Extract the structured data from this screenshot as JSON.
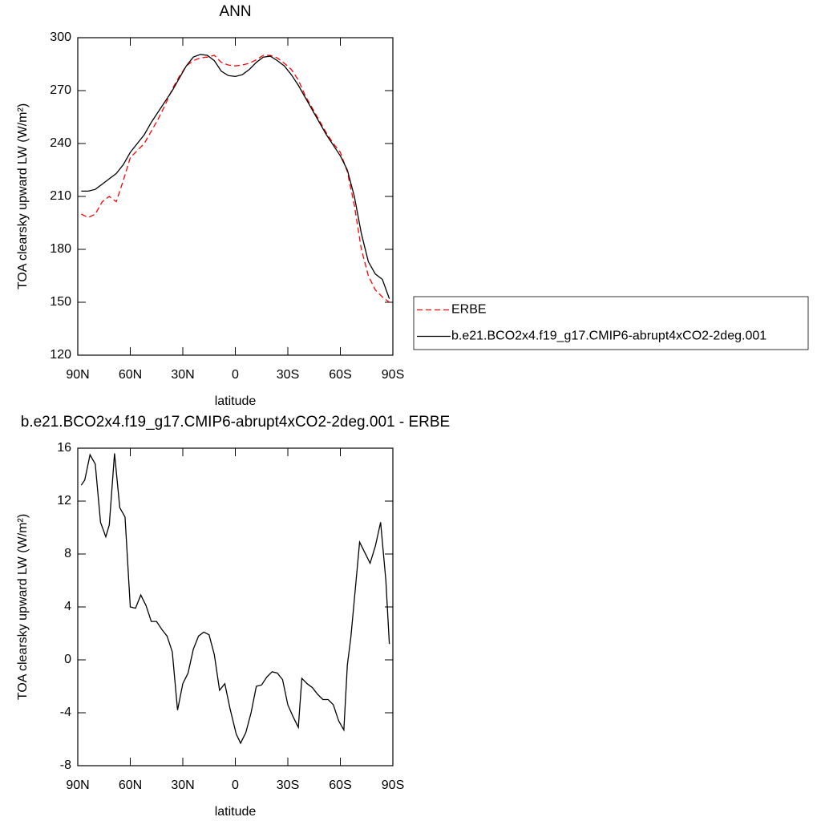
{
  "chart_data": [
    {
      "type": "line",
      "title": "ANN",
      "xlabel": "latitude",
      "ylabel": "TOA clearsky upward LW (W/m²)",
      "x": [
        88,
        84,
        80,
        76,
        72,
        68,
        64,
        60,
        56,
        52,
        48,
        44,
        40,
        36,
        32,
        28,
        24,
        20,
        16,
        12,
        8,
        4,
        0,
        -4,
        -8,
        -12,
        -16,
        -20,
        -24,
        -28,
        -32,
        -36,
        -40,
        -44,
        -48,
        -52,
        -56,
        -60,
        -64,
        -68,
        -72,
        -76,
        -80,
        -84,
        -88
      ],
      "series": [
        {
          "name": "ERBE",
          "color": "#ff0000",
          "line_style": "dashed",
          "values": [
            200,
            198,
            200,
            207,
            210,
            207,
            219,
            232,
            236,
            240,
            247,
            254,
            262,
            271,
            278,
            284,
            287,
            288.5,
            289,
            290,
            286,
            284.5,
            284,
            284.5,
            285.5,
            287.5,
            290,
            290,
            288.5,
            285.5,
            282,
            276,
            267,
            260,
            253,
            246,
            240,
            235,
            224,
            205,
            180,
            165,
            157,
            153,
            150
          ]
        },
        {
          "name": "b.e21.BCO2x4.f19_g17.CMIP6-abrupt4xCO2-2deg.001",
          "color": "#000000",
          "line_style": "solid",
          "values": [
            213,
            213,
            214,
            217,
            220,
            223,
            228,
            235,
            240,
            245,
            252,
            258,
            264,
            270,
            277,
            284,
            289,
            290.5,
            290,
            287,
            281,
            278.5,
            278,
            279,
            282,
            286,
            289,
            289.5,
            287,
            284,
            279,
            273,
            266,
            259,
            252,
            245,
            239,
            233,
            225,
            210,
            189,
            173,
            166,
            163,
            152
          ]
        }
      ],
      "xlim": [
        90,
        -90
      ],
      "xticks": [
        {
          "value": 90,
          "label": "90N"
        },
        {
          "value": 60,
          "label": "60N"
        },
        {
          "value": 30,
          "label": "30N"
        },
        0,
        {
          "value": -30,
          "label": "30S"
        },
        {
          "value": -60,
          "label": "60S"
        },
        {
          "value": -90,
          "label": "90S"
        }
      ],
      "ylim": [
        120,
        300
      ],
      "yticks": [
        120,
        150,
        180,
        210,
        240,
        270,
        300
      ],
      "legend": "right"
    },
    {
      "type": "line",
      "title": "b.e21.BCO2x4.f19_g17.CMIP6-abrupt4xCO2-2deg.001 - ERBE",
      "xlabel": "latitude",
      "ylabel": "TOA clearsky upward LW (W/m²)",
      "x": [
        88,
        86,
        83,
        80,
        77,
        74,
        72,
        69,
        66,
        63,
        60,
        57,
        54,
        51,
        48,
        45,
        42,
        39,
        36,
        33,
        30,
        27,
        24,
        21,
        18,
        15,
        12,
        9,
        6,
        3,
        -0.5,
        -3,
        -6,
        -9,
        -12,
        -15,
        -18,
        -21,
        -24,
        -27,
        -30,
        -33,
        -36,
        -38,
        -41,
        -44,
        -47,
        -50,
        -53,
        -56,
        -59,
        -62,
        -64,
        -66,
        -69,
        -71,
        -74,
        -77,
        -80,
        -83,
        -86,
        -88
      ],
      "values": [
        13.2,
        13.6,
        15.5,
        14.8,
        10.4,
        9.3,
        10.2,
        15.6,
        11.5,
        10.8,
        4.0,
        3.9,
        4.9,
        4.1,
        2.9,
        2.9,
        2.3,
        1.8,
        0.6,
        -3.8,
        -1.8,
        -1.0,
        0.8,
        1.8,
        2.1,
        1.9,
        0.4,
        -2.3,
        -1.8,
        -3.7,
        -5.6,
        -6.3,
        -5.5,
        -4.0,
        -2.0,
        -1.9,
        -1.3,
        -0.9,
        -1.0,
        -1.5,
        -3.4,
        -4.3,
        -5.1,
        -1.4,
        -1.8,
        -2.1,
        -2.6,
        -3.0,
        -3.0,
        -3.4,
        -4.6,
        -5.3,
        -0.4,
        1.7,
        6.0,
        8.9,
        8.1,
        7.3,
        8.6,
        10.4,
        6.0,
        1.2
      ],
      "color": "#000000",
      "xlim": [
        90,
        -90
      ],
      "xticks": [
        {
          "value": 90,
          "label": "90N"
        },
        {
          "value": 60,
          "label": "60N"
        },
        {
          "value": 30,
          "label": "30N"
        },
        0,
        {
          "value": -30,
          "label": "30S"
        },
        {
          "value": -60,
          "label": "60S"
        },
        {
          "value": -90,
          "label": "90S"
        }
      ],
      "ylim": [
        -8,
        16
      ],
      "yticks": [
        -8,
        -4,
        0,
        4,
        8,
        12,
        16
      ]
    }
  ]
}
